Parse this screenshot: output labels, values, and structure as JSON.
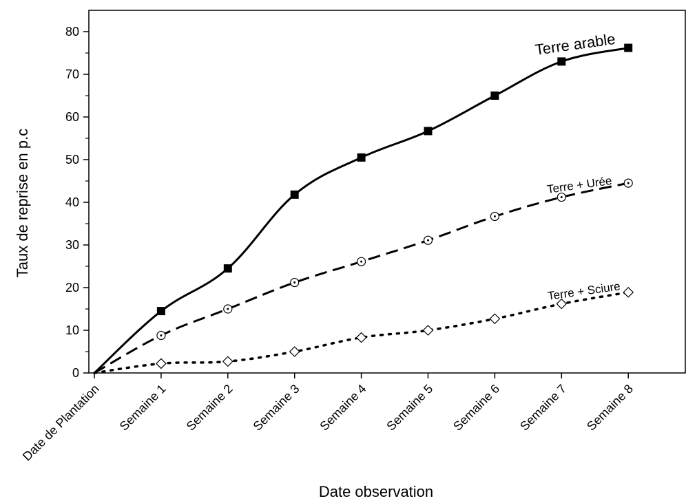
{
  "chart_data": {
    "type": "line",
    "title": "",
    "xlabel": "Date observation",
    "ylabel": "Taux de reprise en p.c",
    "categories": [
      "Date de Plantation",
      "Semaine 1",
      "Semaine 2",
      "Semaine 3",
      "Semaine 4",
      "Semaine 5",
      "Semaine 6",
      "Semaine 7",
      "Semaine 8"
    ],
    "ylim": [
      0,
      85
    ],
    "yticks": [
      0,
      10,
      20,
      30,
      40,
      50,
      60,
      70,
      80
    ],
    "grid": false,
    "legend": "none (labels placed next to line ends)",
    "series": [
      {
        "name": "Terre arable",
        "marker": "filled-square",
        "line_style": "solid",
        "color": "#000000",
        "values": [
          0,
          14.5,
          24.5,
          41.8,
          50.5,
          56.7,
          65,
          73,
          76.2
        ]
      },
      {
        "name": "Terre + Urée",
        "marker": "circle-dot",
        "line_style": "dashed",
        "color": "#000000",
        "values": [
          0,
          8.8,
          15,
          21.2,
          26.1,
          31.1,
          36.7,
          41.2,
          44.5
        ]
      },
      {
        "name": "Terre + Sciure",
        "marker": "open-diamond",
        "line_style": "dotted",
        "color": "#000000",
        "values": [
          0,
          2.2,
          2.7,
          5,
          8.3,
          10,
          12.7,
          16.2,
          18.9
        ]
      }
    ]
  }
}
